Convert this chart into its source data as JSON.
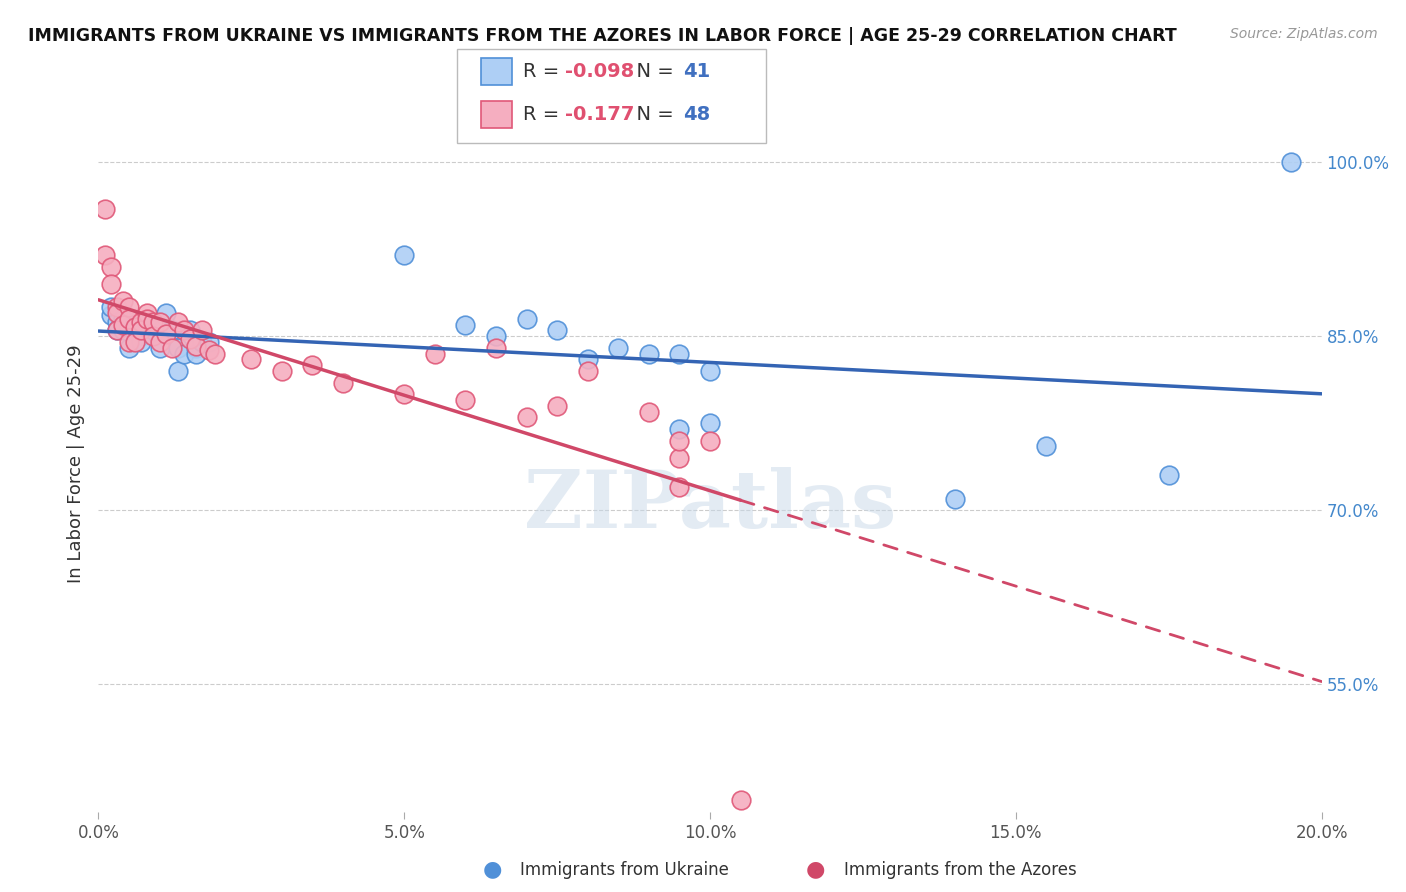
{
  "title": "IMMIGRANTS FROM UKRAINE VS IMMIGRANTS FROM THE AZORES IN LABOR FORCE | AGE 25-29 CORRELATION CHART",
  "source": "Source: ZipAtlas.com",
  "ylabel": "In Labor Force | Age 25-29",
  "xlim": [
    0.0,
    0.2
  ],
  "ylim": [
    0.44,
    1.04
  ],
  "xticks": [
    0.0,
    0.05,
    0.1,
    0.15,
    0.2
  ],
  "xtick_labels": [
    "0.0%",
    "5.0%",
    "10.0%",
    "15.0%",
    "20.0%"
  ],
  "ytick_labels_right": [
    "55.0%",
    "70.0%",
    "85.0%",
    "100.0%"
  ],
  "ytick_vals_right": [
    0.55,
    0.7,
    0.85,
    1.0
  ],
  "ukraine_color": "#aecff5",
  "azores_color": "#f5aec0",
  "ukraine_edge_color": "#5090d8",
  "azores_edge_color": "#e05878",
  "ukraine_line_color": "#3464b4",
  "azores_line_color": "#d04868",
  "R_ukraine": -0.098,
  "N_ukraine": 41,
  "R_azores": -0.177,
  "N_azores": 48,
  "watermark": "ZIPatlas",
  "ukraine_x": [
    0.002,
    0.002,
    0.003,
    0.003,
    0.004,
    0.004,
    0.005,
    0.005,
    0.006,
    0.006,
    0.007,
    0.007,
    0.008,
    0.009,
    0.01,
    0.011,
    0.012,
    0.013,
    0.013,
    0.014,
    0.015,
    0.016,
    0.016,
    0.017,
    0.018,
    0.05,
    0.06,
    0.065,
    0.07,
    0.075,
    0.08,
    0.085,
    0.09,
    0.095,
    0.095,
    0.1,
    0.1,
    0.14,
    0.155,
    0.175,
    0.195
  ],
  "ukraine_y": [
    0.868,
    0.875,
    0.862,
    0.855,
    0.865,
    0.855,
    0.858,
    0.84,
    0.862,
    0.855,
    0.85,
    0.845,
    0.858,
    0.855,
    0.84,
    0.87,
    0.855,
    0.82,
    0.84,
    0.835,
    0.855,
    0.84,
    0.835,
    0.845,
    0.845,
    0.92,
    0.86,
    0.85,
    0.865,
    0.855,
    0.83,
    0.84,
    0.835,
    0.77,
    0.835,
    0.775,
    0.82,
    0.71,
    0.755,
    0.73,
    1.0
  ],
  "azores_x": [
    0.001,
    0.001,
    0.002,
    0.002,
    0.003,
    0.003,
    0.003,
    0.004,
    0.004,
    0.005,
    0.005,
    0.005,
    0.006,
    0.006,
    0.007,
    0.007,
    0.008,
    0.008,
    0.009,
    0.009,
    0.01,
    0.01,
    0.011,
    0.012,
    0.013,
    0.014,
    0.015,
    0.016,
    0.017,
    0.018,
    0.019,
    0.025,
    0.03,
    0.035,
    0.04,
    0.05,
    0.055,
    0.06,
    0.065,
    0.07,
    0.075,
    0.08,
    0.09,
    0.095,
    0.095,
    0.095,
    0.1,
    0.105
  ],
  "azores_y": [
    0.96,
    0.92,
    0.91,
    0.895,
    0.875,
    0.87,
    0.855,
    0.88,
    0.86,
    0.875,
    0.865,
    0.845,
    0.858,
    0.845,
    0.862,
    0.855,
    0.87,
    0.865,
    0.862,
    0.85,
    0.862,
    0.845,
    0.852,
    0.84,
    0.862,
    0.855,
    0.848,
    0.842,
    0.855,
    0.838,
    0.835,
    0.83,
    0.82,
    0.825,
    0.81,
    0.8,
    0.835,
    0.795,
    0.84,
    0.78,
    0.79,
    0.82,
    0.785,
    0.745,
    0.76,
    0.72,
    0.76,
    0.45
  ],
  "legend_R_color": "#e05070",
  "legend_N_color": "#4070c0",
  "bottom_legend_ukraine_color": "#5090d8",
  "bottom_legend_azores_color": "#d04868"
}
